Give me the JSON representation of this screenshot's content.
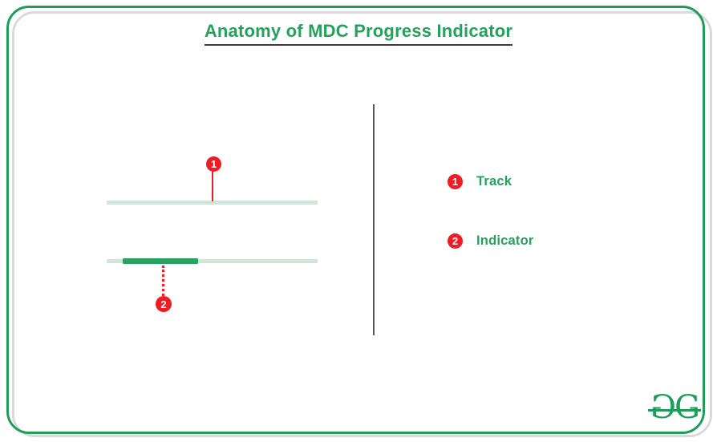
{
  "title": "Anatomy of MDC Progress Indicator",
  "colors": {
    "green": "#1f9d58",
    "text-green": "#26a05c",
    "indicator-green": "#27a35f",
    "track-green": "#d0e5da",
    "red": "#ee1c24",
    "shadow-gray": "#dadada",
    "divider-gray": "#58585b",
    "underline": "#3b3b3b"
  },
  "diagram": {
    "markers": [
      {
        "number": "1"
      },
      {
        "number": "2"
      }
    ]
  },
  "legend": {
    "items": [
      {
        "number": "1",
        "label": "Track"
      },
      {
        "number": "2",
        "label": "Indicator"
      }
    ]
  },
  "logo": {
    "letters": [
      "G",
      "G"
    ]
  }
}
